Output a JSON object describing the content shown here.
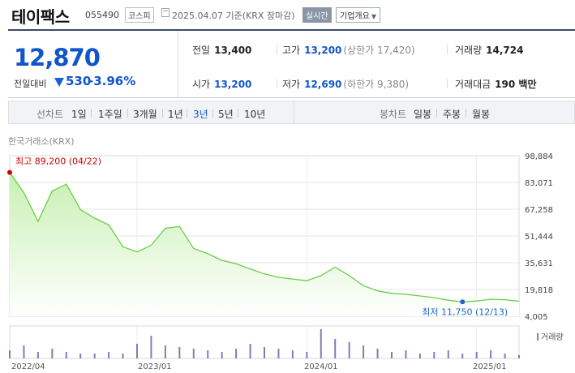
{
  "header": {
    "name": "테이팩스",
    "code": "055490",
    "market": "코스피",
    "date": "2025.04.07  기준(KRX 장마감)",
    "live_button": "실시간",
    "info_button": "기업개요",
    "info_caret": "▼"
  },
  "quote": {
    "price": "12,870",
    "change_label": "전일대비",
    "change_value": "530",
    "change_pct": "-3.96%",
    "prev_close": {
      "label": "전일",
      "value": "13,400"
    },
    "high": {
      "label": "고가",
      "value": "13,200",
      "sub": "(상한가 17,420)"
    },
    "volume": {
      "label": "거래량",
      "value": "14,724"
    },
    "open": {
      "label": "시가",
      "value": "13,200"
    },
    "low": {
      "label": "저가",
      "value": "12,690",
      "sub": "(하한가 9,380)"
    },
    "amount": {
      "label": "거래대금",
      "value": "190 백만"
    }
  },
  "periods": {
    "label": "선차트",
    "items": [
      "1일",
      "1주일",
      "3개월",
      "1년",
      "3년",
      "5년",
      "10년"
    ],
    "selected": "3년",
    "candle_label": "봉차트",
    "candle_items": [
      "일봉",
      "주봉",
      "월봉"
    ]
  },
  "colors": {
    "accent": "#1155cc",
    "line": "#6acd45",
    "area_top": "#c8f0b2",
    "volume": "#8878b8",
    "high_marker": "#cc0000",
    "low_marker": "#1a66cc"
  },
  "chart_data": {
    "type": "area",
    "source": "한국거래소(KRX)",
    "y_ticks": [
      98884,
      83071,
      67258,
      51444,
      35631,
      19818,
      4005
    ],
    "ylim": [
      4005,
      98884
    ],
    "x_ticks": [
      "2022/04",
      "2023/01",
      "2024/01",
      "2025/01"
    ],
    "max_label": "최고",
    "max_value": "89,200 (04/22)",
    "min_label": "최저",
    "min_value": "11,750 (12/13)",
    "volume_legend": "거래량",
    "x": [
      "2022/04",
      "2022/05",
      "2022/06",
      "2022/07",
      "2022/08",
      "2022/09",
      "2022/10",
      "2022/11",
      "2022/12",
      "2023/01",
      "2023/02",
      "2023/03",
      "2023/04",
      "2023/05",
      "2023/06",
      "2023/07",
      "2023/08",
      "2023/09",
      "2023/10",
      "2023/11",
      "2023/12",
      "2024/01",
      "2024/02",
      "2024/03",
      "2024/04",
      "2024/05",
      "2024/06",
      "2024/07",
      "2024/08",
      "2024/09",
      "2024/10",
      "2024/11",
      "2024/12",
      "2025/01",
      "2025/02",
      "2025/03",
      "2025/04"
    ],
    "series": [
      {
        "values": [
          89000,
          77000,
          60000,
          78000,
          82000,
          67000,
          62000,
          58000,
          45000,
          42000,
          46000,
          56000,
          57000,
          44000,
          41000,
          37000,
          35000,
          32000,
          29000,
          27000,
          26000,
          25000,
          28000,
          33000,
          28000,
          22000,
          19000,
          17500,
          17000,
          16000,
          15000,
          13500,
          12500,
          13000,
          14000,
          13800,
          12870
        ]
      }
    ],
    "volume": [
      5,
      8,
      4,
      6,
      4,
      3,
      3,
      4,
      3,
      9,
      14,
      8,
      7,
      6,
      5,
      4,
      6,
      9,
      7,
      6,
      5,
      4,
      18,
      12,
      10,
      8,
      6,
      4,
      5,
      3,
      4,
      5,
      3,
      4,
      5,
      3,
      2
    ]
  }
}
